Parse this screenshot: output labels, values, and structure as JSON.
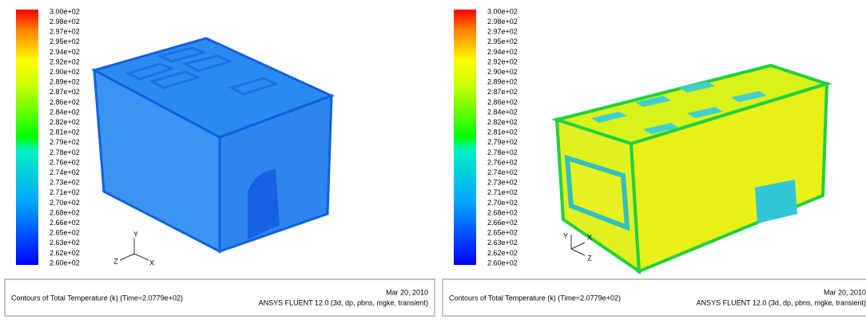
{
  "panels": [
    {
      "colorbar": [
        "3.00e+02",
        "2.98e+02",
        "2.97e+02",
        "2.95e+02",
        "2.94e+02",
        "2.92e+02",
        "2.90e+02",
        "2.89e+02",
        "2.87e+02",
        "2.86e+02",
        "2.84e+02",
        "2.82e+02",
        "2.81e+02",
        "2.79e+02",
        "2.78e+02",
        "2.76e+02",
        "2.74e+02",
        "2.73e+02",
        "2.71e+02",
        "2.70e+02",
        "2.68e+02",
        "2.66e+02",
        "2.65e+02",
        "2.63e+02",
        "2.62e+02",
        "2.60e+02"
      ],
      "axes": {
        "y": "Y",
        "z": "Z",
        "x": "X"
      },
      "footer": {
        "caption": "Contours of Total Temperature (k)  (Time=2.0779e+02)",
        "date": "Mar 20, 2010",
        "software": "ANSYS FLUENT 12.0 (3d, dp, pbns, mgke, transient)"
      }
    },
    {
      "colorbar": [
        "3.00e+02",
        "2.98e+02",
        "2.97e+02",
        "2.95e+02",
        "2.94e+02",
        "2.92e+02",
        "2.90e+02",
        "2.89e+02",
        "2.87e+02",
        "2.86e+02",
        "2.84e+02",
        "2.82e+02",
        "2.81e+02",
        "2.79e+02",
        "2.78e+02",
        "2.76e+02",
        "2.74e+02",
        "2.73e+02",
        "2.71e+02",
        "2.70e+02",
        "2.68e+02",
        "2.66e+02",
        "2.65e+02",
        "2.63e+02",
        "2.62e+02",
        "2.60e+02"
      ],
      "axes": {
        "y": "Y",
        "z": "Z",
        "x": "X"
      },
      "footer": {
        "caption": "Contours of Total Temperature (k)  (Time=2.0779e+02)",
        "date": "Mar 20, 2010",
        "software": "ANSYS FLUENT 12.0 (3d, dp, pbns, mgke, transient)"
      }
    }
  ]
}
